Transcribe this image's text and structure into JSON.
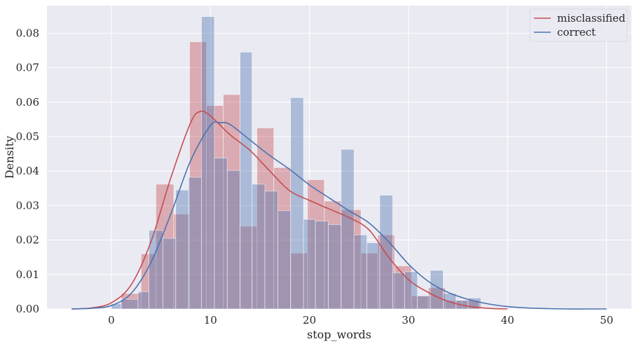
{
  "chart_data": {
    "type": "histogram",
    "xlabel": "stop_words",
    "ylabel": "Density",
    "xlim": [
      -6.5,
      52.5
    ],
    "ylim": [
      0,
      0.088
    ],
    "xticks": [
      0,
      10,
      20,
      30,
      40,
      50
    ],
    "yticks": [
      0.0,
      0.01,
      0.02,
      0.03,
      0.04,
      0.05,
      0.06,
      0.07,
      0.08
    ],
    "grid": true,
    "legend_position": "top-right",
    "colors": {
      "background": "#EAEAF2",
      "grid": "#FFFFFF",
      "misclassified": "#C44E52",
      "correct": "#4C72B0",
      "text": "#262626"
    },
    "series": [
      {
        "name": "misclassified",
        "color": "#C44E52",
        "bins": [
          {
            "x0": 1,
            "x1": 3,
            "density": 0.0045
          },
          {
            "x0": 3,
            "x1": 4.5,
            "density": 0.016
          },
          {
            "x0": 4.5,
            "x1": 6.3,
            "density": 0.0362
          },
          {
            "x0": 6.3,
            "x1": 7.9,
            "density": 0.0275
          },
          {
            "x0": 7.9,
            "x1": 9.6,
            "density": 0.0775
          },
          {
            "x0": 9.6,
            "x1": 11.3,
            "density": 0.059
          },
          {
            "x0": 11.3,
            "x1": 13,
            "density": 0.0622
          },
          {
            "x0": 13,
            "x1": 14.7,
            "density": 0.024
          },
          {
            "x0": 14.7,
            "x1": 16.4,
            "density": 0.0525
          },
          {
            "x0": 16.4,
            "x1": 18.1,
            "density": 0.041
          },
          {
            "x0": 18.1,
            "x1": 19.8,
            "density": 0.0162
          },
          {
            "x0": 19.8,
            "x1": 21.5,
            "density": 0.0375
          },
          {
            "x0": 21.5,
            "x1": 23.2,
            "density": 0.0313
          },
          {
            "x0": 23.2,
            "x1": 25.2,
            "density": 0.0288
          },
          {
            "x0": 25.2,
            "x1": 26.9,
            "density": 0.0162
          },
          {
            "x0": 26.9,
            "x1": 28.6,
            "density": 0.0215
          },
          {
            "x0": 28.6,
            "x1": 30.3,
            "density": 0.0125
          },
          {
            "x0": 30.3,
            "x1": 32.0,
            "density": 0.0038
          },
          {
            "x0": 32.0,
            "x1": 33.7,
            "density": 0.0062
          },
          {
            "x0": 33.7,
            "x1": 35.4,
            "density": 0.0025
          },
          {
            "x0": 35.4,
            "x1": 37.1,
            "density": 0.0025
          }
        ],
        "kde_x": [
          -4,
          -2,
          0,
          2,
          4,
          6,
          8,
          9,
          10,
          12,
          14,
          16,
          18,
          20,
          22,
          24,
          26,
          28,
          30,
          32,
          34,
          36,
          38,
          40
        ],
        "kde_y": [
          0.0,
          0.0003,
          0.0018,
          0.007,
          0.0195,
          0.038,
          0.054,
          0.0573,
          0.056,
          0.0505,
          0.046,
          0.04,
          0.0343,
          0.0315,
          0.029,
          0.0265,
          0.023,
          0.015,
          0.0085,
          0.0048,
          0.0022,
          0.0008,
          0.0002,
          0.0
        ]
      },
      {
        "name": "correct",
        "color": "#4C72B0",
        "bins": [
          {
            "x0": 0,
            "x1": 1,
            "density": 0.0015
          },
          {
            "x0": 1,
            "x1": 2.7,
            "density": 0.0028
          },
          {
            "x0": 2.7,
            "x1": 3.8,
            "density": 0.005
          },
          {
            "x0": 3.8,
            "x1": 5.2,
            "density": 0.0228
          },
          {
            "x0": 5.2,
            "x1": 6.5,
            "density": 0.0205
          },
          {
            "x0": 6.5,
            "x1": 7.8,
            "density": 0.0345
          },
          {
            "x0": 7.8,
            "x1": 9.1,
            "density": 0.0382
          },
          {
            "x0": 9.1,
            "x1": 10.4,
            "density": 0.0848
          },
          {
            "x0": 10.4,
            "x1": 11.7,
            "density": 0.0438
          },
          {
            "x0": 11.7,
            "x1": 13.0,
            "density": 0.0402
          },
          {
            "x0": 13.0,
            "x1": 14.2,
            "density": 0.0745
          },
          {
            "x0": 14.2,
            "x1": 15.5,
            "density": 0.0362
          },
          {
            "x0": 15.5,
            "x1": 16.8,
            "density": 0.0342
          },
          {
            "x0": 16.8,
            "x1": 18.1,
            "density": 0.0285
          },
          {
            "x0": 18.1,
            "x1": 19.4,
            "density": 0.0613
          },
          {
            "x0": 19.4,
            "x1": 20.6,
            "density": 0.026
          },
          {
            "x0": 20.6,
            "x1": 21.9,
            "density": 0.0255
          },
          {
            "x0": 21.9,
            "x1": 23.2,
            "density": 0.0245
          },
          {
            "x0": 23.2,
            "x1": 24.5,
            "density": 0.0463
          },
          {
            "x0": 24.5,
            "x1": 25.8,
            "density": 0.0215
          },
          {
            "x0": 25.8,
            "x1": 27.1,
            "density": 0.0192
          },
          {
            "x0": 27.1,
            "x1": 28.4,
            "density": 0.033
          },
          {
            "x0": 28.4,
            "x1": 29.6,
            "density": 0.0105
          },
          {
            "x0": 29.6,
            "x1": 30.9,
            "density": 0.0108
          },
          {
            "x0": 30.9,
            "x1": 32.2,
            "density": 0.0038
          },
          {
            "x0": 32.2,
            "x1": 33.5,
            "density": 0.0112
          },
          {
            "x0": 33.5,
            "x1": 34.8,
            "density": 0.0045
          },
          {
            "x0": 34.8,
            "x1": 36.0,
            "density": 0.0025
          },
          {
            "x0": 36.0,
            "x1": 37.3,
            "density": 0.0032
          }
        ],
        "kde_x": [
          -4,
          -2,
          0,
          2,
          4,
          6,
          8,
          10,
          11,
          12,
          14,
          16,
          18,
          20,
          22,
          24,
          26,
          28,
          30,
          32,
          34,
          36,
          38,
          40,
          42,
          44,
          46,
          48,
          50
        ],
        "kde_y": [
          0.0,
          0.0002,
          0.001,
          0.0045,
          0.0135,
          0.0275,
          0.043,
          0.0532,
          0.054,
          0.0535,
          0.049,
          0.0445,
          0.0405,
          0.036,
          0.0322,
          0.0285,
          0.025,
          0.0195,
          0.013,
          0.008,
          0.0048,
          0.0028,
          0.0015,
          0.0007,
          0.0003,
          0.0001,
          0.0,
          0.0,
          0.0
        ]
      }
    ]
  }
}
